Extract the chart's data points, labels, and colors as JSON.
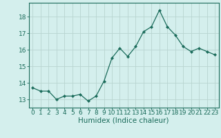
{
  "x": [
    0,
    1,
    2,
    3,
    4,
    5,
    6,
    7,
    8,
    9,
    10,
    11,
    12,
    13,
    14,
    15,
    16,
    17,
    18,
    19,
    20,
    21,
    22,
    23
  ],
  "y": [
    13.7,
    13.5,
    13.5,
    13.0,
    13.2,
    13.2,
    13.3,
    12.9,
    13.2,
    14.1,
    15.5,
    16.1,
    15.6,
    16.2,
    17.1,
    17.4,
    18.4,
    17.4,
    16.9,
    16.2,
    15.9,
    16.1,
    15.9,
    15.7
  ],
  "line_color": "#1a6b5a",
  "marker": "D",
  "marker_size": 2.2,
  "bg_color": "#d4efed",
  "grid_color": "#b8d4d0",
  "xlabel": "Humidex (Indice chaleur)",
  "ylabel_ticks": [
    13,
    14,
    15,
    16,
    17,
    18
  ],
  "ylim": [
    12.5,
    18.85
  ],
  "xlim": [
    -0.5,
    23.5
  ],
  "xtick_labels": [
    "0",
    "1",
    "2",
    "3",
    "4",
    "5",
    "6",
    "7",
    "8",
    "9",
    "10",
    "11",
    "12",
    "13",
    "14",
    "15",
    "16",
    "17",
    "18",
    "19",
    "20",
    "21",
    "22",
    "23"
  ],
  "tick_fontsize": 6.5,
  "xlabel_fontsize": 7.5
}
